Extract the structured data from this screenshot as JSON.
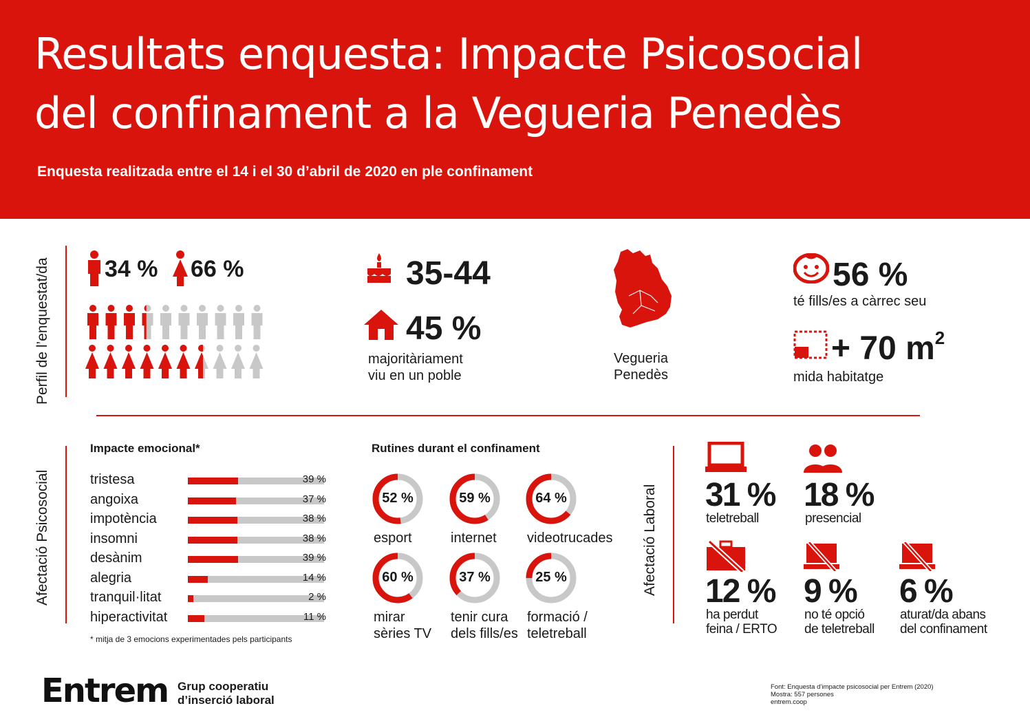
{
  "header": {
    "title_line1": "Resultats enquesta: Impacte Psicosocial",
    "title_line2": "del confinament a la Vegueria Penedès",
    "subtitle": "Enquesta realitzada entre el 14 i el 30 d’abril de 2020 en ple confinament"
  },
  "profile": {
    "section_label": "Perfil de l’enquestat/da",
    "male_pct": "34 %",
    "female_pct": "66 %",
    "male_fraction": 0.34,
    "female_fraction": 0.66,
    "age": "35-44",
    "village_pct": "45 %",
    "village_label_1": "majoritàriament",
    "village_label_2": "viu en un poble",
    "region_label_1": "Vegueria",
    "region_label_2": "Penedès",
    "children_pct": "56 %",
    "children_label": "té fills/es a càrrec seu",
    "housing_value": "+ 70 m",
    "housing_sup": "2",
    "housing_label": "mida habitatge"
  },
  "psycho": {
    "section_label": "Afectació Psicosocial",
    "emotions_title": "Impacte emocional*",
    "emotions": [
      {
        "name": "tristesa",
        "value": 39,
        "label": "39 %"
      },
      {
        "name": "angoixa",
        "value": 37,
        "label": "37 %"
      },
      {
        "name": "impotència",
        "value": 38,
        "label": "38 %"
      },
      {
        "name": "insomni",
        "value": 38,
        "label": "38 %"
      },
      {
        "name": "desànim",
        "value": 39,
        "label": "39 %"
      },
      {
        "name": "alegria",
        "value": 14,
        "label": "14 %"
      },
      {
        "name": "tranquil·litat",
        "value": 2,
        "label": "2 %"
      },
      {
        "name": "hiperactivitat",
        "value": 11,
        "label": "11 %"
      }
    ],
    "footnote": "* mitja de 3 emocions experimentades pels participants",
    "routines_title": "Rutines durant el confinament",
    "routines": [
      {
        "value": 52,
        "label": "52 %",
        "name_1": "esport",
        "name_2": ""
      },
      {
        "value": 59,
        "label": "59 %",
        "name_1": "internet",
        "name_2": ""
      },
      {
        "value": 64,
        "label": "64 %",
        "name_1": "videotrucades",
        "name_2": ""
      },
      {
        "value": 60,
        "label": "60 %",
        "name_1": "mirar",
        "name_2": "sèries TV"
      },
      {
        "value": 37,
        "label": "37 %",
        "name_1": "tenir cura",
        "name_2": "dels fills/es"
      },
      {
        "value": 25,
        "label": "25 %",
        "name_1": "formació /",
        "name_2": "teletreball"
      }
    ]
  },
  "labour": {
    "section_label": "Afectació Laboral",
    "items": [
      {
        "icon": "laptop-icon",
        "value": "31 %",
        "label_1": "teletreball",
        "label_2": ""
      },
      {
        "icon": "people-icon",
        "value": "18 %",
        "label_1": "presencial",
        "label_2": ""
      },
      {
        "icon": "crossed-briefcase-icon",
        "value": "12 %",
        "label_1": "ha perdut",
        "label_2": "feina / ERTO"
      },
      {
        "icon": "crossed-laptop-icon",
        "value": "9 %",
        "label_1": "no té opció",
        "label_2": "de teletreball"
      },
      {
        "icon": "crossed-laptop-icon",
        "value": "6 %",
        "label_1": "aturat/da abans",
        "label_2": "del confinament"
      }
    ]
  },
  "footer": {
    "logo_text": "Entrem",
    "org_line1": "Grup cooperatiu",
    "org_line2": "d’inserció laboral",
    "source_line1": "Font: Enquesta d’impacte psicosocial per Entrem (2020)",
    "source_line2": "Mostra: 557 persones",
    "source_line3": "entrem.coop"
  },
  "colors": {
    "accent": "#d8140c",
    "muted": "#c8c8c8",
    "text": "#1a1a1a"
  }
}
